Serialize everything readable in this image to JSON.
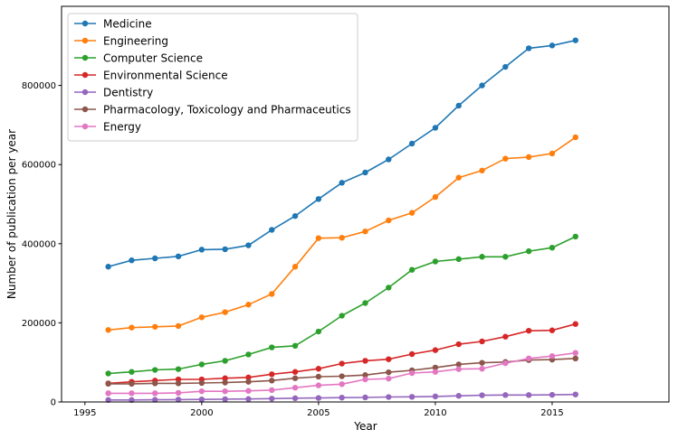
{
  "chart_data": {
    "type": "line",
    "title": "",
    "xlabel": "Year",
    "ylabel": "Number of publication per year",
    "xlim": [
      1994,
      2020
    ],
    "ylim": [
      0,
      1000000
    ],
    "xticks": [
      1995,
      2000,
      2005,
      2010,
      2015
    ],
    "xtick_labels": [
      "1995",
      "2000",
      "2005",
      "2010",
      "2015"
    ],
    "yticks": [
      0,
      200000,
      400000,
      600000,
      800000
    ],
    "ytick_labels": [
      "0",
      "200000",
      "400000",
      "600000",
      "800000"
    ],
    "grid": false,
    "legend_position": "top-left",
    "x": [
      1996,
      1997,
      1998,
      1999,
      2000,
      2001,
      2002,
      2003,
      2004,
      2005,
      2006,
      2007,
      2008,
      2009,
      2010,
      2011,
      2012,
      2013,
      2014,
      2015,
      2016
    ],
    "series": [
      {
        "name": "Medicine",
        "color": "#1f77b4",
        "values": [
          342000,
          358000,
          363000,
          368000,
          385000,
          386000,
          396000,
          435000,
          470000,
          513000,
          554000,
          580000,
          613000,
          653000,
          693000,
          749000,
          800000,
          847000,
          894000,
          901000,
          914000
        ]
      },
      {
        "name": "Engineering",
        "color": "#ff7f0e",
        "values": [
          182000,
          188000,
          190000,
          192000,
          214000,
          227000,
          246000,
          273000,
          342000,
          414000,
          415000,
          431000,
          459000,
          478000,
          518000,
          567000,
          585000,
          615000,
          619000,
          628000,
          669000
        ]
      },
      {
        "name": "Computer Science",
        "color": "#2ca02c",
        "values": [
          72000,
          76000,
          81000,
          83000,
          95000,
          104000,
          120000,
          138000,
          142000,
          178000,
          218000,
          250000,
          289000,
          334000,
          355000,
          361000,
          367000,
          367000,
          381000,
          390000,
          418000
        ]
      },
      {
        "name": "Environmental Science",
        "color": "#d62728",
        "values": [
          47000,
          51000,
          54000,
          57000,
          57000,
          60000,
          62000,
          70000,
          76000,
          84000,
          97000,
          104000,
          108000,
          121000,
          131000,
          146000,
          153000,
          165000,
          180000,
          181000,
          197000
        ]
      },
      {
        "name": "Dentistry",
        "color": "#9467bd",
        "values": [
          5000,
          5000,
          5500,
          6000,
          6500,
          7000,
          7500,
          8500,
          9500,
          10000,
          11000,
          11500,
          12500,
          13000,
          14000,
          15500,
          17000,
          17500,
          17500,
          18000,
          19000
        ]
      },
      {
        "name": "Pharmacology, Toxicology and Pharmaceutics",
        "color": "#8c564b",
        "values": [
          46000,
          46000,
          47000,
          47000,
          48000,
          49000,
          51000,
          54000,
          60000,
          64000,
          65000,
          68000,
          75000,
          80000,
          87000,
          95000,
          99000,
          101000,
          106000,
          107000,
          110000
        ]
      },
      {
        "name": "Energy",
        "color": "#e377c2",
        "values": [
          22000,
          22000,
          22000,
          23000,
          27000,
          27000,
          28000,
          30000,
          36000,
          42000,
          45000,
          57000,
          59000,
          73000,
          76000,
          83000,
          84000,
          98000,
          110000,
          116000,
          124000
        ]
      }
    ]
  }
}
